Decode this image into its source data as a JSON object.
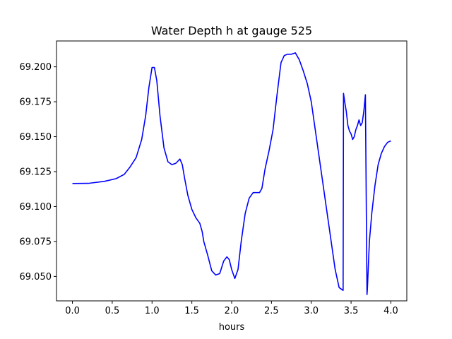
{
  "chart_data": {
    "type": "line",
    "title": "Water Depth h at gauge 525",
    "xlabel": "hours",
    "ylabel": "",
    "xlim": [
      -0.2,
      4.2
    ],
    "ylim": [
      69.0325,
      69.2185
    ],
    "xticks": [
      0.0,
      0.5,
      1.0,
      1.5,
      2.0,
      2.5,
      3.0,
      3.5,
      4.0
    ],
    "xtick_labels": [
      "0.0",
      "0.5",
      "1.0",
      "1.5",
      "2.0",
      "2.5",
      "3.0",
      "3.5",
      "4.0"
    ],
    "yticks": [
      69.05,
      69.075,
      69.1,
      69.125,
      69.15,
      69.175,
      69.2
    ],
    "ytick_labels": [
      "69.050",
      "69.075",
      "69.100",
      "69.125",
      "69.150",
      "69.175",
      "69.200"
    ],
    "grid": false,
    "series": [
      {
        "color": "#0000ff",
        "x": [
          0.0,
          0.2,
          0.4,
          0.55,
          0.65,
          0.72,
          0.8,
          0.87,
          0.92,
          0.96,
          1.0,
          1.03,
          1.06,
          1.1,
          1.15,
          1.2,
          1.25,
          1.3,
          1.35,
          1.38,
          1.41,
          1.45,
          1.5,
          1.55,
          1.6,
          1.63,
          1.65,
          1.7,
          1.75,
          1.8,
          1.85,
          1.9,
          1.94,
          1.97,
          2.0,
          2.04,
          2.08,
          2.12,
          2.17,
          2.22,
          2.27,
          2.3,
          2.35,
          2.38,
          2.42,
          2.47,
          2.52,
          2.57,
          2.62,
          2.66,
          2.7,
          2.75,
          2.8,
          2.85,
          2.9,
          2.95,
          3.0,
          3.05,
          3.1,
          3.15,
          3.2,
          3.25,
          3.3,
          3.35,
          3.4,
          3.405,
          3.42,
          3.44,
          3.46,
          3.48,
          3.5,
          3.52,
          3.54,
          3.56,
          3.58,
          3.6,
          3.62,
          3.64,
          3.66,
          3.68,
          3.7,
          3.705,
          3.73,
          3.76,
          3.8,
          3.84,
          3.88,
          3.92,
          3.96,
          4.0
        ],
        "y": [
          69.1165,
          69.1166,
          69.118,
          69.12,
          69.123,
          69.128,
          69.135,
          69.148,
          69.165,
          69.185,
          69.1995,
          69.1995,
          69.19,
          69.165,
          69.142,
          69.132,
          69.13,
          69.131,
          69.134,
          69.13,
          69.12,
          69.108,
          69.098,
          69.092,
          69.088,
          69.082,
          69.075,
          69.065,
          69.054,
          69.051,
          69.052,
          69.061,
          69.064,
          69.062,
          69.055,
          69.0485,
          69.055,
          69.075,
          69.095,
          69.106,
          69.11,
          69.11,
          69.11,
          69.113,
          69.127,
          69.14,
          69.155,
          69.18,
          69.203,
          69.208,
          69.209,
          69.209,
          69.21,
          69.205,
          69.197,
          69.188,
          69.175,
          69.155,
          69.135,
          69.115,
          69.095,
          69.075,
          69.055,
          69.042,
          69.04,
          69.181,
          69.175,
          69.168,
          69.158,
          69.154,
          69.152,
          69.148,
          69.15,
          69.155,
          69.158,
          69.162,
          69.158,
          69.16,
          69.168,
          69.18,
          69.037,
          69.041,
          69.075,
          69.095,
          69.115,
          69.13,
          69.138,
          69.143,
          69.146,
          69.147
        ]
      }
    ]
  }
}
